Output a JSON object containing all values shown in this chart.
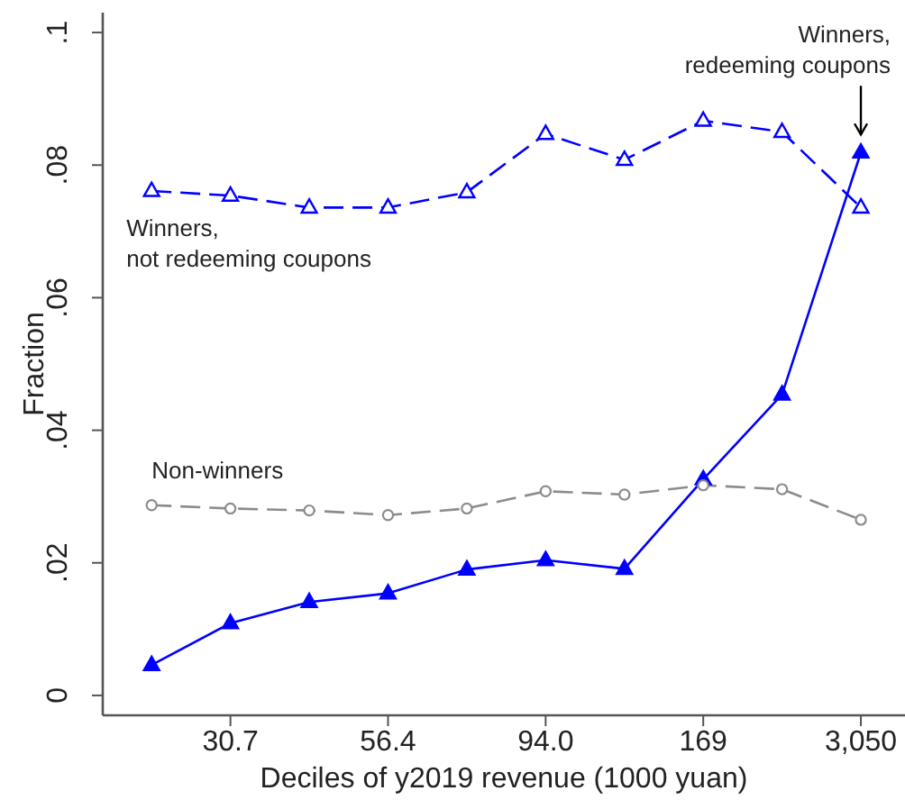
{
  "chart_data": {
    "type": "line",
    "xlabel": "Deciles of y2019 revenue (1000 yuan)",
    "ylabel": "Fraction",
    "categories": [
      null,
      "30.7",
      null,
      "56.4",
      null,
      "94.0",
      null,
      "169",
      null,
      "3,050"
    ],
    "series": [
      {
        "name": "Winners,\nnot redeeming coupons",
        "color": "#0000ff",
        "marker": "triangle",
        "line_style": "dashed",
        "values": [
          0.0761,
          0.0754,
          0.0736,
          0.0736,
          0.0759,
          0.0847,
          0.0808,
          0.0867,
          0.085,
          0.0736
        ]
      },
      {
        "name": "Winners,\nredeeming coupons",
        "color": "#0000ff",
        "marker": "triangle",
        "line_style": "solid",
        "values": [
          0.0046,
          0.0109,
          0.0141,
          0.0154,
          0.019,
          0.0204,
          0.0191,
          0.0326,
          0.0454,
          0.0819
        ]
      },
      {
        "name": "Non-winners",
        "color": "#8c8c8c",
        "marker": "circle",
        "line_style": "dashed",
        "values": [
          0.0287,
          0.0282,
          0.0279,
          0.0272,
          0.0282,
          0.0308,
          0.0303,
          0.0317,
          0.0311,
          0.0265
        ]
      }
    ],
    "ylim": [
      -0.003,
      0.103
    ],
    "yticks": [
      0,
      {
        "value": 0.02,
        "label": ".02"
      },
      {
        "value": 0.04,
        "label": ".04"
      },
      {
        "value": 0.06,
        "label": ".06"
      },
      {
        "value": 0.08,
        "label": ".08"
      },
      {
        "value": 0.1,
        "label": ".1"
      }
    ]
  }
}
